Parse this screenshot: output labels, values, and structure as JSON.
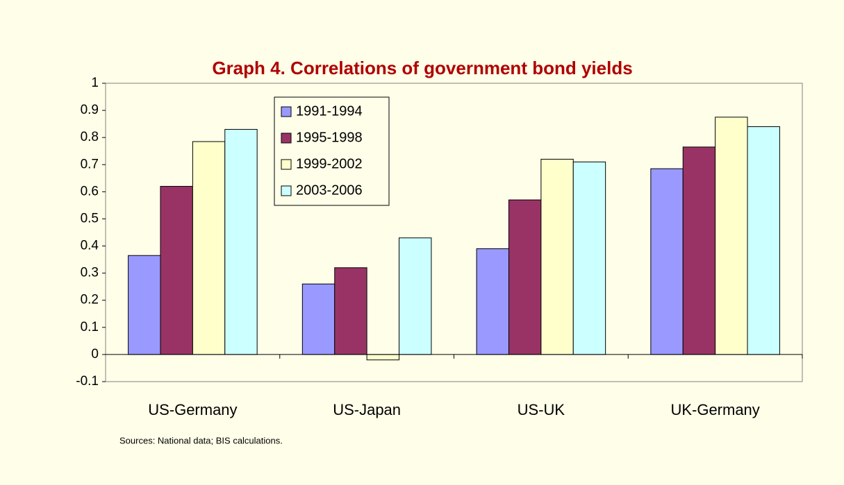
{
  "chart_data": {
    "type": "bar",
    "title": "Graph 4. Correlations of government bond yields",
    "note": "Sources: National data; BIS calculations.",
    "categories": [
      "US-Germany",
      "US-Japan",
      "US-UK",
      "UK-Germany"
    ],
    "series": [
      {
        "name": "1991-1994",
        "color": "#9999ff",
        "values": [
          0.365,
          0.26,
          0.39,
          0.685
        ]
      },
      {
        "name": "1995-1998",
        "color": "#993366",
        "values": [
          0.62,
          0.32,
          0.57,
          0.765
        ]
      },
      {
        "name": "1999-2002",
        "color": "#ffffcc",
        "values": [
          0.785,
          -0.02,
          0.72,
          0.875
        ]
      },
      {
        "name": "2003-2006",
        "color": "#ccffff",
        "values": [
          0.83,
          0.43,
          0.71,
          0.84
        ]
      }
    ],
    "ylim": [
      -0.1,
      1
    ],
    "yticks": [
      -0.1,
      0,
      0.1,
      0.2,
      0.3,
      0.4,
      0.5,
      0.6,
      0.7,
      0.8,
      0.9,
      1
    ],
    "grid": false,
    "legend": "upper-left"
  }
}
